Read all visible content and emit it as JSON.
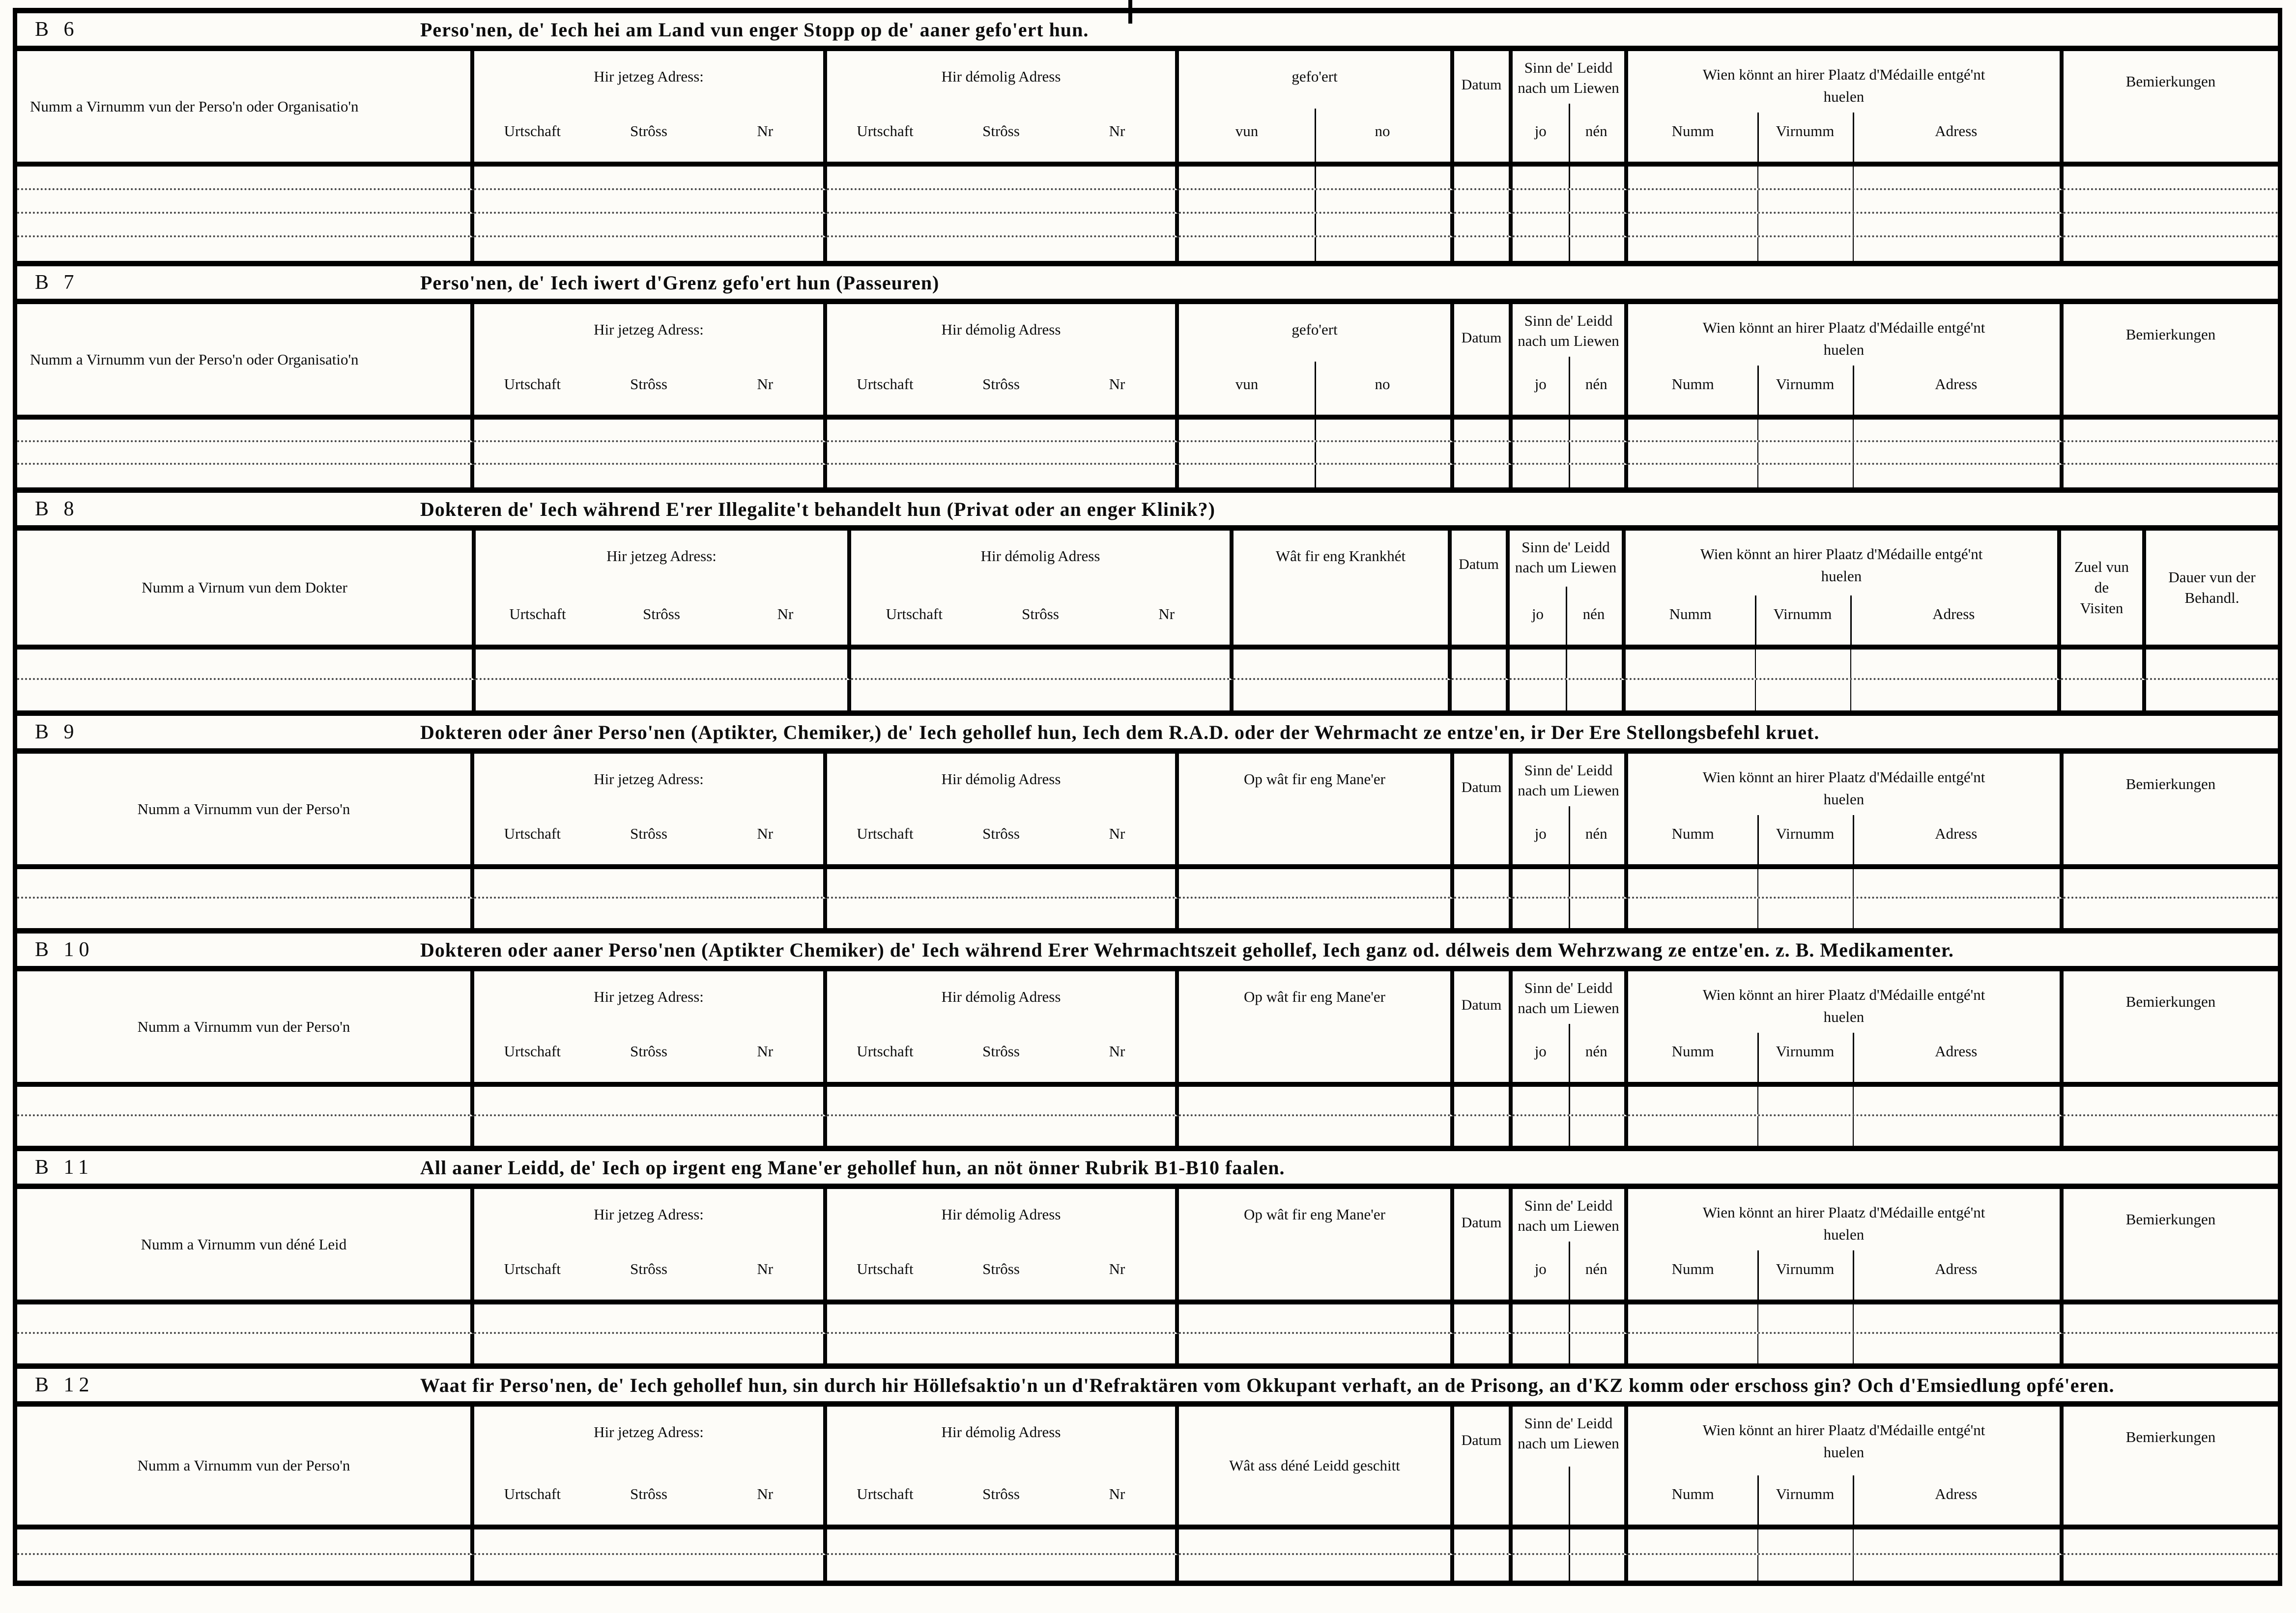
{
  "common": {
    "jetzeg": "Hir jetzeg Adress:",
    "demolig": "Hir démolig Adress",
    "urtschaft": "Urtschaft",
    "stross": "Strôss",
    "nr": "Nr",
    "gefoert": "gefo'ert",
    "vun": "vun",
    "no": "no",
    "datum": "Datum",
    "sinn": "Sinn de' Leidd nach um Liewen",
    "jo": "jo",
    "nen": "nén",
    "wien": "Wien könnt an hirer Plaatz d'Médaille entgé'nt huelen",
    "numm": "Numm",
    "virnumm": "Virnumm",
    "adress": "Adress",
    "bemierkungen": "Bemierkungen"
  },
  "sections": [
    {
      "id": "B 6",
      "title": "Perso'nen, de' Iech hei am Land vun enger Stopp op de' aaner gefo'ert hun.",
      "name_label": "Numm a Virnumm vun der Perso'n oder Organisatio'n",
      "col4_label": "gefo'ert"
    },
    {
      "id": "B 7",
      "title": "Perso'nen, de' Iech iwert d'Grenz gefo'ert hun (Passeuren)",
      "name_label": "Numm a Virnumm vun der Perso'n oder Organisatio'n",
      "col4_label": "gefo'ert"
    },
    {
      "id": "B 8",
      "title": "Dokteren de' Iech während E'rer Illegalite't behandelt hun (Privat oder an enger Klinik?)",
      "name_label": "Numm a Virnum vun dem Dokter",
      "col4_label": "Wât fir eng Krankhét",
      "zuel_label": "Zuel vun de Visiten",
      "dauer_label": "Dauer vun der Behandl."
    },
    {
      "id": "B 9",
      "title": "Dokteren oder âner Perso'nen (Aptikter, Chemiker,) de' Iech gehollef hun, Iech dem R.A.D. oder der Wehrmacht ze entze'en, ir Der Ere Stellongsbefehl kruet.",
      "name_label": "Numm a Virnumm vun der Perso'n",
      "col4_label": "Op wât fir eng Mane'er"
    },
    {
      "id": "B 10",
      "title": "Dokteren oder aaner Perso'nen (Aptikter Chemiker) de' Iech während Erer Wehrmachtszeit gehollef, Iech ganz od. délweis dem Wehrzwang ze entze'en. z. B. Medikamenter.",
      "name_label": "Numm a Virnumm vun der Perso'n",
      "col4_label": "Op wât fir eng Mane'er"
    },
    {
      "id": "B 11",
      "title": "All aaner Leidd, de' Iech op irgent eng Mane'er gehollef hun, an nöt önner Rubrik B1-B10 faalen.",
      "name_label": "Numm a Virnumm vun déné Leid",
      "col4_label": "Op wât fir eng Mane'er"
    },
    {
      "id": "B 12",
      "title": "Waat fir Perso'nen, de' Iech gehollef hun, sin durch hir Höllefsaktio'n un d'Refraktären vom Okkupant verhaft, an de Prisong, an d'KZ komm oder erschoss gin? Och d'Emsiedlung opfé'eren.",
      "name_label": "Numm a Virnumm vun der Perso'n",
      "col4_label": "Wât ass déné Leidd geschitt"
    }
  ]
}
